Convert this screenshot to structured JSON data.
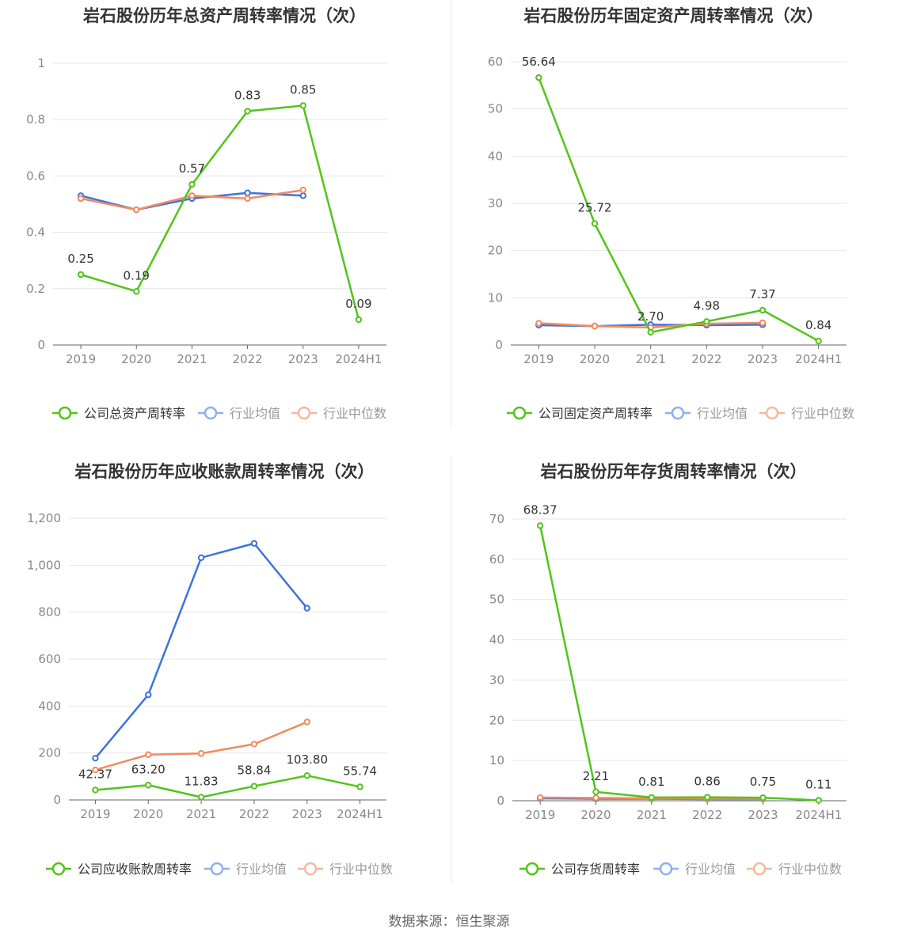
{
  "source": "数据来源：恒生聚源",
  "chart_data": [
    {
      "type": "line",
      "title": "岩石股份历年总资产周转率情况（次）",
      "categories": [
        "2019",
        "2020",
        "2021",
        "2022",
        "2023",
        "2024H1"
      ],
      "yticks": [
        "0",
        "0.2",
        "0.4",
        "0.6",
        "0.8",
        "1"
      ],
      "ylim": [
        0,
        1
      ],
      "series": [
        {
          "name": "公司总资产周转率",
          "color": "#52c41a",
          "values": [
            0.25,
            0.19,
            0.57,
            0.83,
            0.85,
            0.09
          ],
          "labels": [
            "0.25",
            "0.19",
            "0.57",
            "0.83",
            "0.85",
            "0.09"
          ]
        },
        {
          "name": "行业均值",
          "color": "#3d72e0",
          "values": [
            0.53,
            0.48,
            0.52,
            0.54,
            0.53,
            null
          ]
        },
        {
          "name": "行业中位数",
          "color": "#f4895f",
          "values": [
            0.52,
            0.48,
            0.53,
            0.52,
            0.55,
            null
          ]
        }
      ]
    },
    {
      "type": "line",
      "title": "岩石股份历年固定资产周转率情况（次）",
      "categories": [
        "2019",
        "2020",
        "2021",
        "2022",
        "2023",
        "2024H1"
      ],
      "yticks": [
        "0",
        "10",
        "20",
        "30",
        "40",
        "50",
        "60"
      ],
      "ylim": [
        0,
        60
      ],
      "series": [
        {
          "name": "公司固定资产周转率",
          "color": "#52c41a",
          "values": [
            56.64,
            25.72,
            2.7,
            4.98,
            7.37,
            0.84
          ],
          "labels": [
            "56.64",
            "25.72",
            "2.70",
            "4.98",
            "7.37",
            "0.84"
          ]
        },
        {
          "name": "行业均值",
          "color": "#3d72e0",
          "values": [
            4.2,
            4.0,
            4.3,
            4.2,
            4.3,
            null
          ]
        },
        {
          "name": "行业中位数",
          "color": "#f4895f",
          "values": [
            4.6,
            4.0,
            3.7,
            4.5,
            4.7,
            null
          ]
        }
      ]
    },
    {
      "type": "line",
      "title": "岩石股份历年应收账款周转率情况（次）",
      "categories": [
        "2019",
        "2020",
        "2021",
        "2022",
        "2023",
        "2024H1"
      ],
      "yticks": [
        "0",
        "200",
        "400",
        "600",
        "800",
        "1,000",
        "1,200"
      ],
      "ylim": [
        0,
        1200
      ],
      "series": [
        {
          "name": "公司应收账款周转率",
          "color": "#52c41a",
          "values": [
            42.37,
            63.2,
            11.83,
            58.84,
            103.8,
            55.74
          ],
          "labels": [
            "42.37",
            "63.20",
            "11.83",
            "58.84",
            "103.80",
            "55.74"
          ]
        },
        {
          "name": "行业均值",
          "color": "#3d72e0",
          "values": [
            178,
            448,
            1032,
            1093,
            817,
            null
          ]
        },
        {
          "name": "行业中位数",
          "color": "#f4895f",
          "values": [
            128,
            193,
            198,
            238,
            332,
            null
          ]
        }
      ]
    },
    {
      "type": "line",
      "title": "岩石股份历年存货周转率情况（次）",
      "categories": [
        "2019",
        "2020",
        "2021",
        "2022",
        "2023",
        "2024H1"
      ],
      "yticks": [
        "0",
        "10",
        "20",
        "30",
        "40",
        "50",
        "60",
        "70"
      ],
      "ylim": [
        0,
        70
      ],
      "series": [
        {
          "name": "公司存货周转率",
          "color": "#52c41a",
          "values": [
            68.37,
            2.21,
            0.81,
            0.86,
            0.75,
            0.11
          ],
          "labels": [
            "68.37",
            "2.21",
            "0.81",
            "0.86",
            "0.75",
            "0.11"
          ]
        },
        {
          "name": "行业均值",
          "color": "#3d72e0",
          "values": [
            0.6,
            0.5,
            0.5,
            0.4,
            0.4,
            null
          ]
        },
        {
          "name": "行业中位数",
          "color": "#f4895f",
          "values": [
            0.8,
            0.7,
            0.6,
            0.5,
            0.5,
            null
          ]
        }
      ]
    }
  ]
}
